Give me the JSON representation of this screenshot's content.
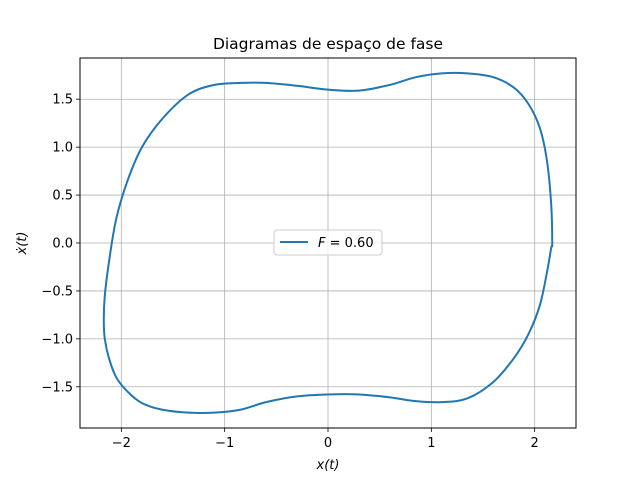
{
  "chart_data": {
    "type": "line",
    "title": "Diagramas de espaço de fase",
    "xlabel": "x(t)",
    "ylabel": "ẋ(t)",
    "xlim": [
      -2.4,
      2.4
    ],
    "ylim": [
      -1.93,
      1.93
    ],
    "xticks": [
      -2,
      -1,
      0,
      1,
      2
    ],
    "xtick_labels": [
      "−2",
      "−1",
      "0",
      "1",
      "2"
    ],
    "yticks": [
      -1.5,
      -1.0,
      -0.5,
      0.0,
      0.5,
      1.0,
      1.5
    ],
    "ytick_labels": [
      "−1.5",
      "−1.0",
      "−0.5",
      "0.0",
      "0.5",
      "1.0",
      "1.5"
    ],
    "grid": true,
    "legend_position": "center",
    "line_color": "#1f77b4",
    "series": [
      {
        "name": "F = 0.60",
        "legend_parts": {
          "var": "F",
          "rest": " = 0.60"
        },
        "x": [
          2.17,
          2.16,
          2.12,
          2.05,
          1.94,
          1.8,
          1.6,
          1.35,
          1.1,
          0.85,
          0.6,
          0.3,
          0.0,
          -0.3,
          -0.6,
          -0.85,
          -1.1,
          -1.35,
          -1.6,
          -1.8,
          -1.94,
          -2.05,
          -2.12,
          -2.16,
          -2.17,
          -2.16,
          -2.12,
          -2.05,
          -1.94,
          -1.8,
          -1.6,
          -1.35,
          -1.1,
          -0.85,
          -0.6,
          -0.3,
          0.0,
          0.3,
          0.6,
          0.85,
          1.1,
          1.35,
          1.6,
          1.8,
          1.94,
          2.05,
          2.12,
          2.16,
          2.17
        ],
        "y": [
          0.0,
          0.4,
          0.85,
          1.2,
          1.45,
          1.62,
          1.73,
          1.77,
          1.77,
          1.73,
          1.65,
          1.59,
          1.6,
          1.64,
          1.67,
          1.67,
          1.65,
          1.55,
          1.3,
          1.0,
          0.65,
          0.25,
          -0.2,
          -0.55,
          -0.8,
          -1.0,
          -1.2,
          -1.4,
          -1.55,
          -1.67,
          -1.74,
          -1.77,
          -1.77,
          -1.74,
          -1.66,
          -1.6,
          -1.58,
          -1.58,
          -1.61,
          -1.65,
          -1.66,
          -1.62,
          -1.45,
          -1.2,
          -0.95,
          -0.65,
          -0.3,
          -0.05,
          0.0
        ]
      }
    ]
  }
}
